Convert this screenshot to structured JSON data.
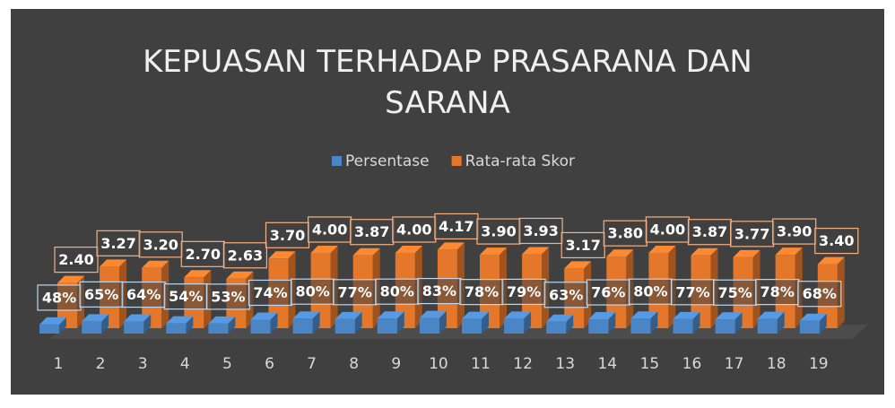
{
  "chart_data": {
    "type": "bar3d",
    "title": "KEPUASAN TERHADAP PRASARANA DAN SARANA",
    "categories": [
      "1",
      "2",
      "3",
      "4",
      "5",
      "6",
      "7",
      "8",
      "9",
      "10",
      "11",
      "12",
      "13",
      "14",
      "15",
      "16",
      "17",
      "18",
      "19"
    ],
    "series": [
      {
        "name": "Persentase",
        "color": "#4a86c5",
        "axis": "y2",
        "values": [
          48,
          65,
          64,
          54,
          53,
          74,
          80,
          77,
          80,
          83,
          78,
          79,
          63,
          76,
          80,
          77,
          75,
          78,
          68
        ],
        "value_labels": [
          "48%",
          "65%",
          "64%",
          "54%",
          "53%",
          "74%",
          "80%",
          "77%",
          "80%",
          "83%",
          "78%",
          "79%",
          "63%",
          "76%",
          "80%",
          "77%",
          "75%",
          "78%",
          "68%"
        ]
      },
      {
        "name": "Rata-rata Skor",
        "color": "#e5772a",
        "values": [
          2.4,
          3.27,
          3.2,
          2.7,
          2.63,
          3.7,
          4.0,
          3.87,
          4.0,
          4.17,
          3.9,
          3.93,
          3.17,
          3.8,
          4.0,
          3.87,
          3.77,
          3.9,
          3.4
        ],
        "value_labels": [
          "2.40",
          "3.27",
          "3.20",
          "2.70",
          "2.63",
          "3.70",
          "4.00",
          "3.87",
          "4.00",
          "4.17",
          "3.90",
          "3.93",
          "3.17",
          "3.80",
          "4.00",
          "3.87",
          "3.77",
          "3.90",
          "3.40"
        ]
      }
    ],
    "ylim": [
      0,
      6
    ],
    "y2lim": [
      0,
      600
    ],
    "legend": "top"
  }
}
